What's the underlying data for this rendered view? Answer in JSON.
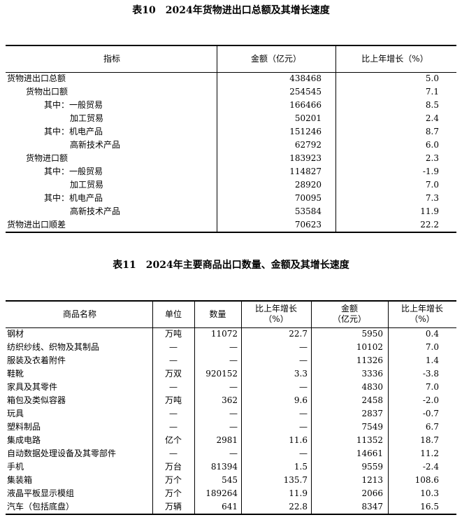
{
  "table10": {
    "title": "表10　2024年货物进出口总额及其增长速度",
    "header": [
      "指标",
      "金额（亿元）",
      "比上年增长（%）"
    ],
    "rows": [
      [
        "货物进出口总额",
        "438468",
        "5.0"
      ],
      [
        "货物出口额",
        "254545",
        "7.1"
      ],
      [
        "其中：一般贸易",
        "166466",
        "8.5"
      ],
      [
        "加工贸易",
        "50201",
        "2.4"
      ],
      [
        "其中：机电产品",
        "151246",
        "8.7"
      ],
      [
        "高新技术产品",
        "62792",
        "6.0"
      ],
      [
        "货物进口额",
        "183923",
        "2.3"
      ],
      [
        "其中：一般贸易",
        "114827",
        "-1.9"
      ],
      [
        "加工贸易",
        "28920",
        "7.0"
      ],
      [
        "其中：机电产品",
        "70095",
        "7.3"
      ],
      [
        "高新技术产品",
        "53584",
        "11.9"
      ],
      [
        "货物进出口顺差",
        "70623",
        "22.2"
      ]
    ]
  },
  "table11": {
    "title": "表11　2024年主要商品出口数量、金额及其增长速度",
    "header": [
      "商品名称",
      "单位",
      "数量",
      "比上年增长\n（%）",
      "金额\n（亿元）",
      "比上年增长\n（%）"
    ],
    "rows": [
      [
        "钢材",
        "万吨",
        "11072",
        "22.7",
        "5950",
        "0.4"
      ],
      [
        "纺织纱线、织物及其制品",
        "—",
        "—",
        "—",
        "10102",
        "7.0"
      ],
      [
        "服装及衣着附件",
        "—",
        "—",
        "—",
        "11326",
        "1.4"
      ],
      [
        "鞋靴",
        "万双",
        "920152",
        "3.3",
        "3336",
        "-3.8"
      ],
      [
        "家具及其零件",
        "—",
        "—",
        "—",
        "4830",
        "7.0"
      ],
      [
        "箱包及类似容器",
        "万吨",
        "362",
        "9.6",
        "2458",
        "-2.0"
      ],
      [
        "玩具",
        "—",
        "—",
        "—",
        "2837",
        "-0.7"
      ],
      [
        "塑料制品",
        "—",
        "—",
        "—",
        "7549",
        "6.7"
      ],
      [
        "集成电路",
        "亿个",
        "2981",
        "11.6",
        "11352",
        "18.7"
      ],
      [
        "自动数据处理设备及其零部件",
        "—",
        "—",
        "—",
        "14661",
        "11.2"
      ],
      [
        "手机",
        "万台",
        "81394",
        "1.5",
        "9559",
        "-2.4"
      ],
      [
        "集装箱",
        "万个",
        "545",
        "135.7",
        "1213",
        "108.6"
      ],
      [
        "液晶平板显示模组",
        "万个",
        "189264",
        "11.9",
        "2066",
        "10.3"
      ],
      [
        "汽车（包括底盘）",
        "万辆",
        "641",
        "22.8",
        "8347",
        "16.5"
      ]
    ]
  }
}
